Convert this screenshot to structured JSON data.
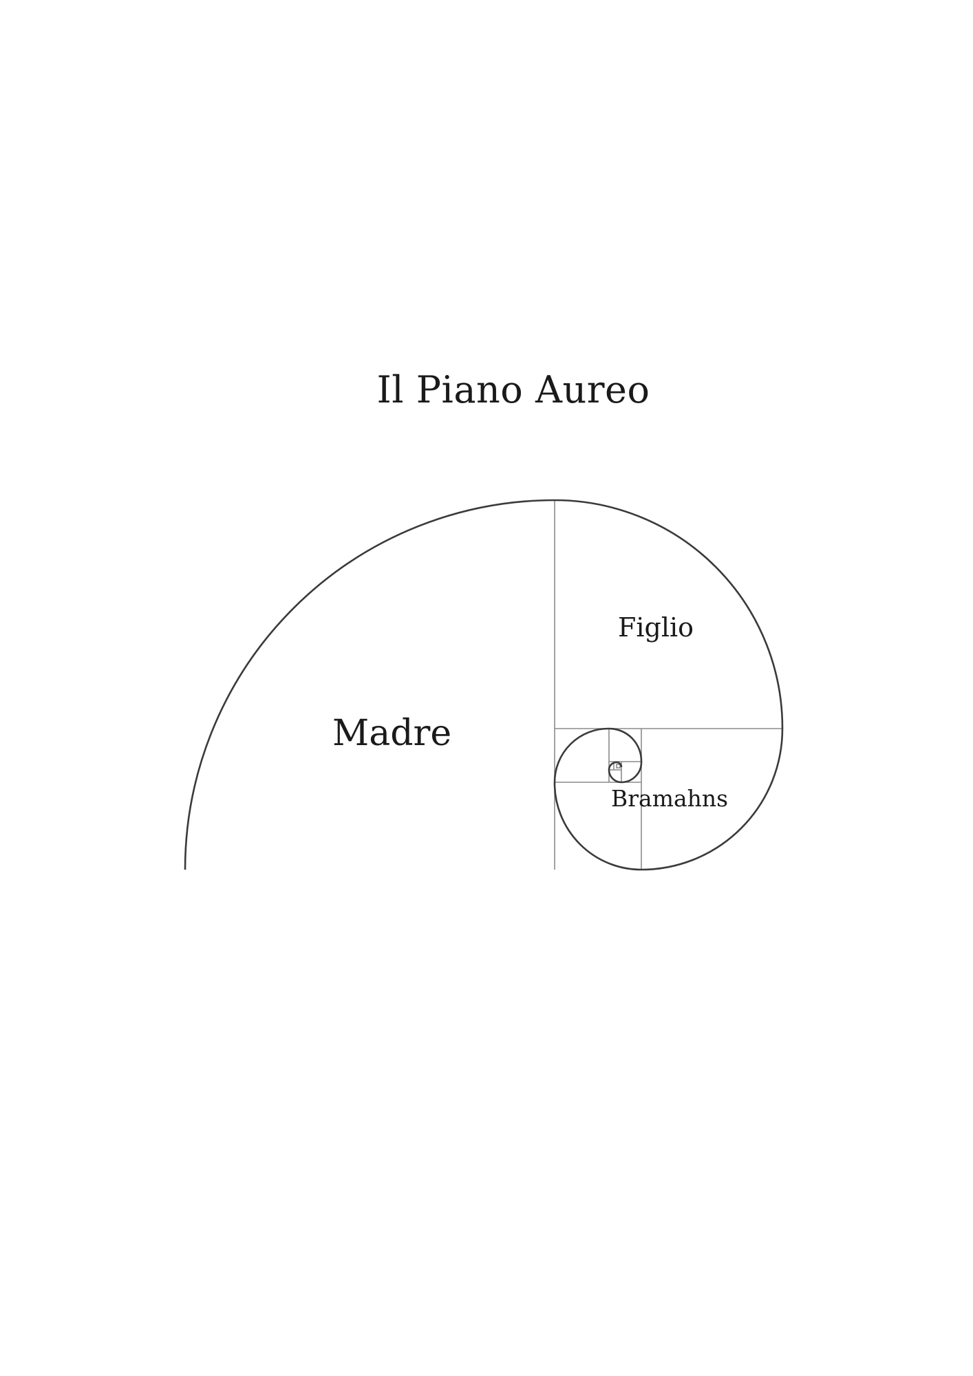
{
  "title": "Il Piano Aureo",
  "labels": {
    "madre": "Madre",
    "figlio": "Figlio",
    "bramahns": "Bramahns"
  },
  "colors": {
    "background": "#ffffff",
    "text": "#1a1a1a",
    "spiral": "#3a3a3a",
    "grid": "#8a8a8a"
  }
}
